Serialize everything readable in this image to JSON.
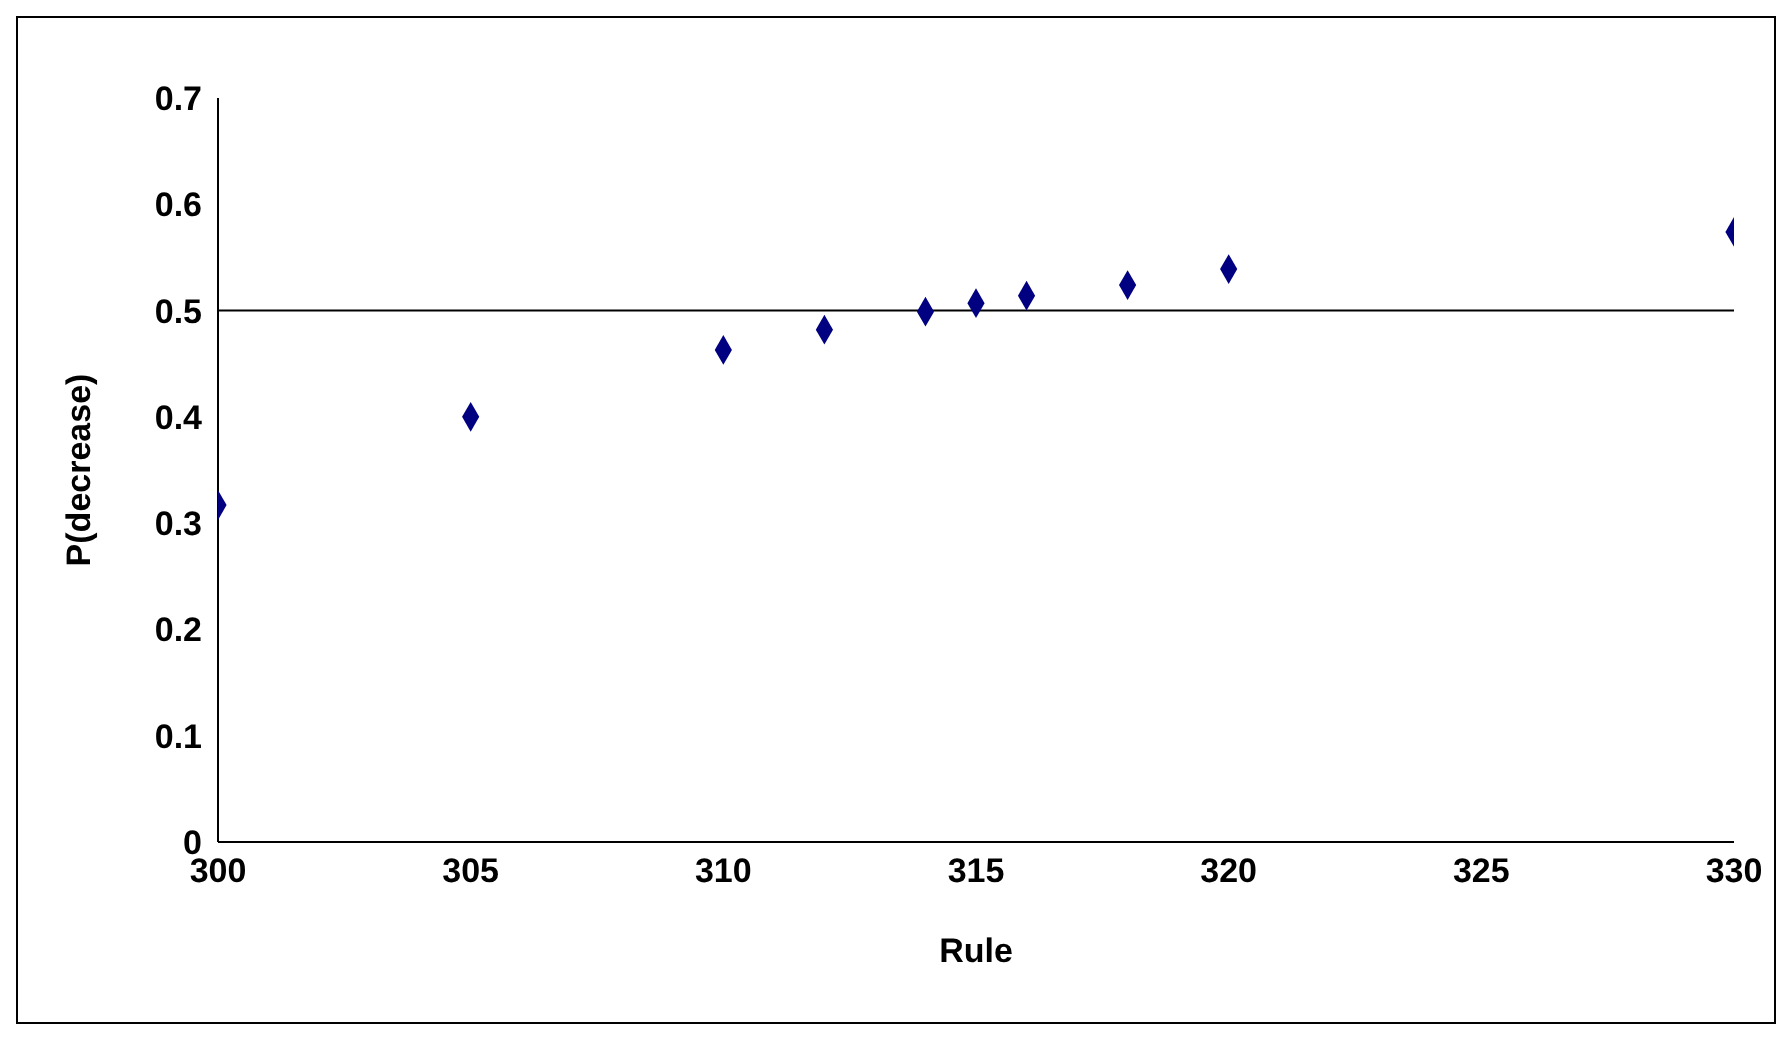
{
  "chart_data": {
    "type": "scatter",
    "xlabel": "Rule",
    "ylabel": "P(decrease)",
    "x": [
      300,
      305,
      310,
      312,
      314,
      315,
      316,
      318,
      320,
      330
    ],
    "values": [
      0.317,
      0.4,
      0.463,
      0.482,
      0.499,
      0.507,
      0.514,
      0.524,
      0.539,
      0.574
    ],
    "color": "#000080",
    "marker": "diamond",
    "grid": false,
    "legend": false,
    "xlim": [
      300,
      330
    ],
    "xticks": [
      300,
      305,
      310,
      315,
      320,
      325,
      330
    ],
    "ylim": [
      0,
      0.7
    ],
    "yticks": [
      0,
      0.1,
      0.2,
      0.3,
      0.4,
      0.5,
      0.6,
      0.7
    ],
    "ref_lines": [
      {
        "axis": "y",
        "value": 0.5,
        "color": "#000000"
      }
    ]
  }
}
